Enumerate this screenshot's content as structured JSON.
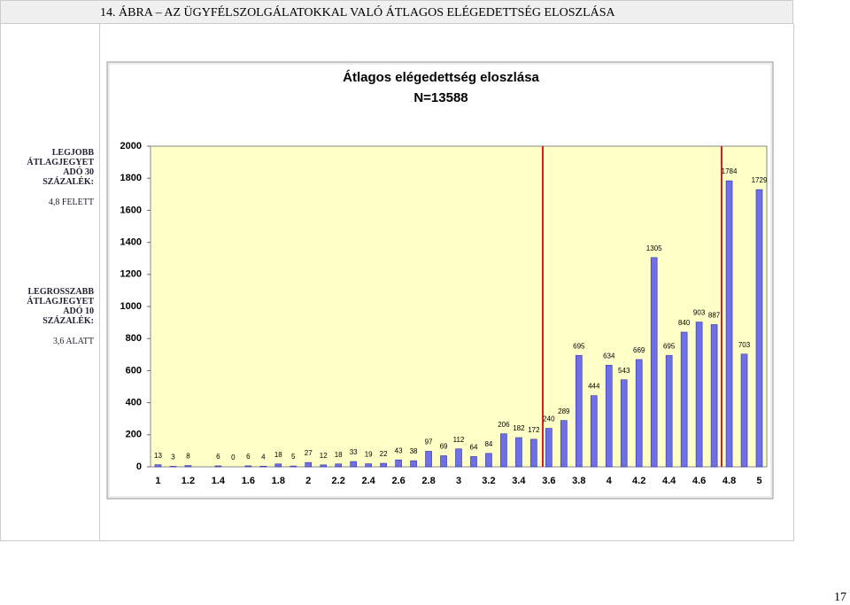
{
  "header": {
    "title": "14. ÁBRA – AZ ÜGYFÉLSZOLGÁLATOKKAL VALÓ ÁTLAGOS ELÉGEDETTSÉG ELOSZLÁSA"
  },
  "sidebar": {
    "top": {
      "heading": [
        "LEGJOBB",
        "ÁTLAGJEGYET",
        "ADÓ 30",
        "SZÁZALÉK:"
      ],
      "value": "4,8 FELETT"
    },
    "bottom": {
      "heading": [
        "LEGROSSZABB",
        "ÁTLAGJEGYET",
        "ADÓ 10",
        "SZÁZALÉK:"
      ],
      "value": "3,6 ALATT"
    }
  },
  "chart_data": {
    "type": "bar",
    "title": "Átlagos elégedettség eloszlása",
    "subtitle": "N=13588",
    "categories": [
      "1",
      null,
      "1.2",
      null,
      "1.4",
      null,
      "1.6",
      null,
      "1.8",
      null,
      "2",
      null,
      "2.2",
      null,
      "2.4",
      null,
      "2.6",
      null,
      "2.8",
      null,
      "3",
      null,
      "3.2",
      null,
      "3.4",
      null,
      "3.6",
      null,
      "3.8",
      null,
      "4",
      null,
      "4.2",
      null,
      "4.4",
      null,
      "4.6",
      null,
      "4.8",
      null,
      "5"
    ],
    "values": [
      13,
      3,
      8,
      null,
      6,
      0,
      6,
      4,
      18,
      5,
      27,
      12,
      18,
      33,
      19,
      22,
      43,
      38,
      97,
      69,
      112,
      64,
      84,
      206,
      182,
      172,
      240,
      289,
      695,
      444,
      634,
      543,
      669,
      1305,
      695,
      840,
      903,
      887,
      1784,
      703,
      1729
    ],
    "color": "#6f6fe8",
    "ylim": [
      0,
      2000
    ],
    "yticks": [
      0,
      200,
      400,
      600,
      800,
      1000,
      1200,
      1400,
      1600,
      1800,
      2000
    ]
  },
  "page_number": "17"
}
